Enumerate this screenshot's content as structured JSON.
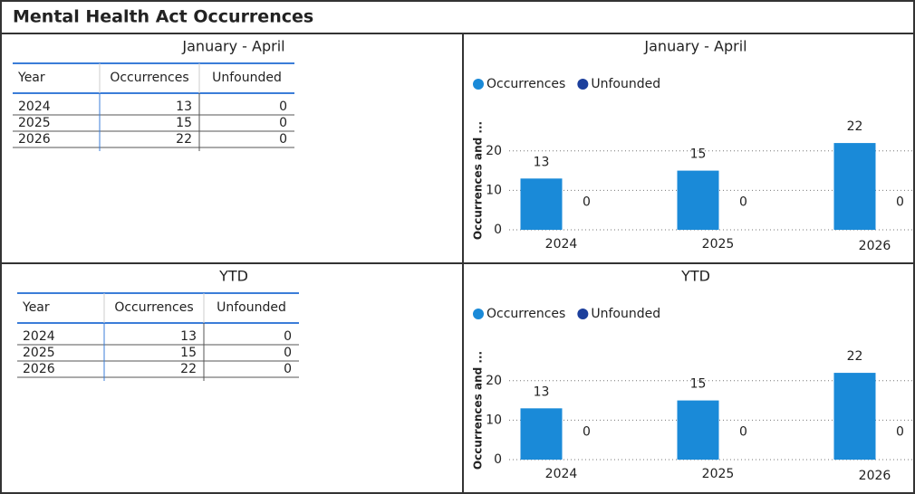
{
  "title": "Mental Health Act Occurrences",
  "tables": [
    {
      "title": "January - April",
      "columns": [
        "Year",
        "Occurrences",
        "Unfounded"
      ],
      "rows": [
        [
          "2024",
          13,
          0
        ],
        [
          "2025",
          15,
          0
        ],
        [
          "2026",
          22,
          0
        ]
      ]
    },
    {
      "title": "YTD",
      "columns": [
        "Year",
        "Occurrences",
        "Unfounded"
      ],
      "rows": [
        [
          "2024",
          13,
          0
        ],
        [
          "2025",
          15,
          0
        ],
        [
          "2026",
          22,
          0
        ]
      ]
    }
  ],
  "chart_data": [
    {
      "type": "bar",
      "title": "January - April",
      "y_label": "Occurrences and ...",
      "categories": [
        "2024",
        "2025",
        "2026"
      ],
      "series": [
        {
          "name": "Occurrences",
          "color": "#1a8ad8",
          "values": [
            13,
            15,
            22
          ]
        },
        {
          "name": "Unfounded",
          "color": "#1c3f9c",
          "values": [
            0,
            0,
            0
          ]
        }
      ],
      "ylim": [
        0,
        25
      ],
      "yticks": [
        0,
        10,
        20
      ],
      "grid": true
    },
    {
      "type": "bar",
      "title": "YTD",
      "y_label": "Occurrences and ...",
      "categories": [
        "2024",
        "2025",
        "2026"
      ],
      "series": [
        {
          "name": "Occurrences",
          "color": "#1a8ad8",
          "values": [
            13,
            15,
            22
          ]
        },
        {
          "name": "Unfounded",
          "color": "#1c3f9c",
          "values": [
            0,
            0,
            0
          ]
        }
      ],
      "ylim": [
        0,
        25
      ],
      "yticks": [
        0,
        10,
        20
      ],
      "grid": true
    }
  ]
}
